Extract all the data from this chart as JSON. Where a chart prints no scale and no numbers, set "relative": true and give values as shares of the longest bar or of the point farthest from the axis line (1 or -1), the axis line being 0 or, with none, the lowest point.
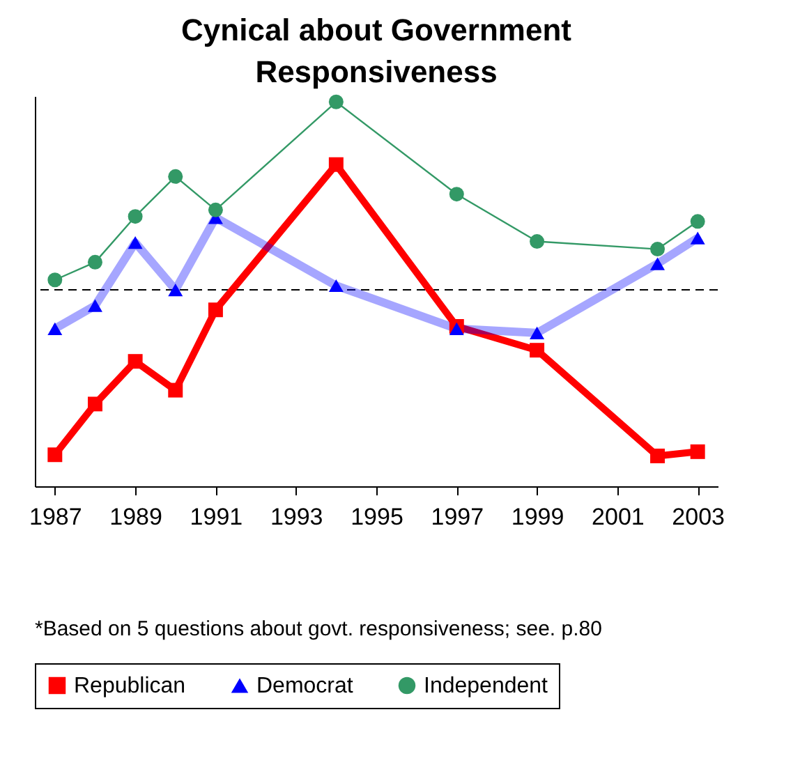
{
  "chart_data": {
    "type": "line",
    "title": "Cynical about Government Responsiveness",
    "relative": true,
    "x": [
      1987,
      1988,
      1989,
      1990,
      1991,
      1994,
      1997,
      1999,
      2002,
      2003
    ],
    "xlim": [
      1986.5,
      2003.5
    ],
    "xticks": [
      1987,
      1989,
      1991,
      1993,
      1995,
      1997,
      1999,
      2001,
      2003
    ],
    "series": [
      {
        "name": "Republican",
        "color": "#ff0000",
        "marker": "square",
        "values": [
          0.082,
          0.214,
          0.325,
          0.25,
          0.459,
          0.837,
          0.416,
          0.354,
          0.079,
          0.09
        ]
      },
      {
        "name": "Democrat",
        "color": "#0000ff",
        "marker": "triangle",
        "values": [
          0.41,
          0.47,
          0.634,
          0.511,
          0.699,
          0.522,
          0.41,
          0.399,
          0.579,
          0.646
        ]
      },
      {
        "name": "Independent",
        "color": "#339966",
        "marker": "circle",
        "values": [
          0.537,
          0.583,
          0.702,
          0.806,
          0.719,
          1,
          0.76,
          0.637,
          0.617,
          0.689
        ]
      }
    ],
    "ref_lines": [
      {
        "axis": "y",
        "value": 0.511,
        "label": null,
        "line_style": "dashed",
        "color": "#000000"
      }
    ],
    "legend": "bottom",
    "grid": false,
    "annotations": [
      "*Based on 5 questions about govt. responsiveness; see. p.80"
    ]
  }
}
